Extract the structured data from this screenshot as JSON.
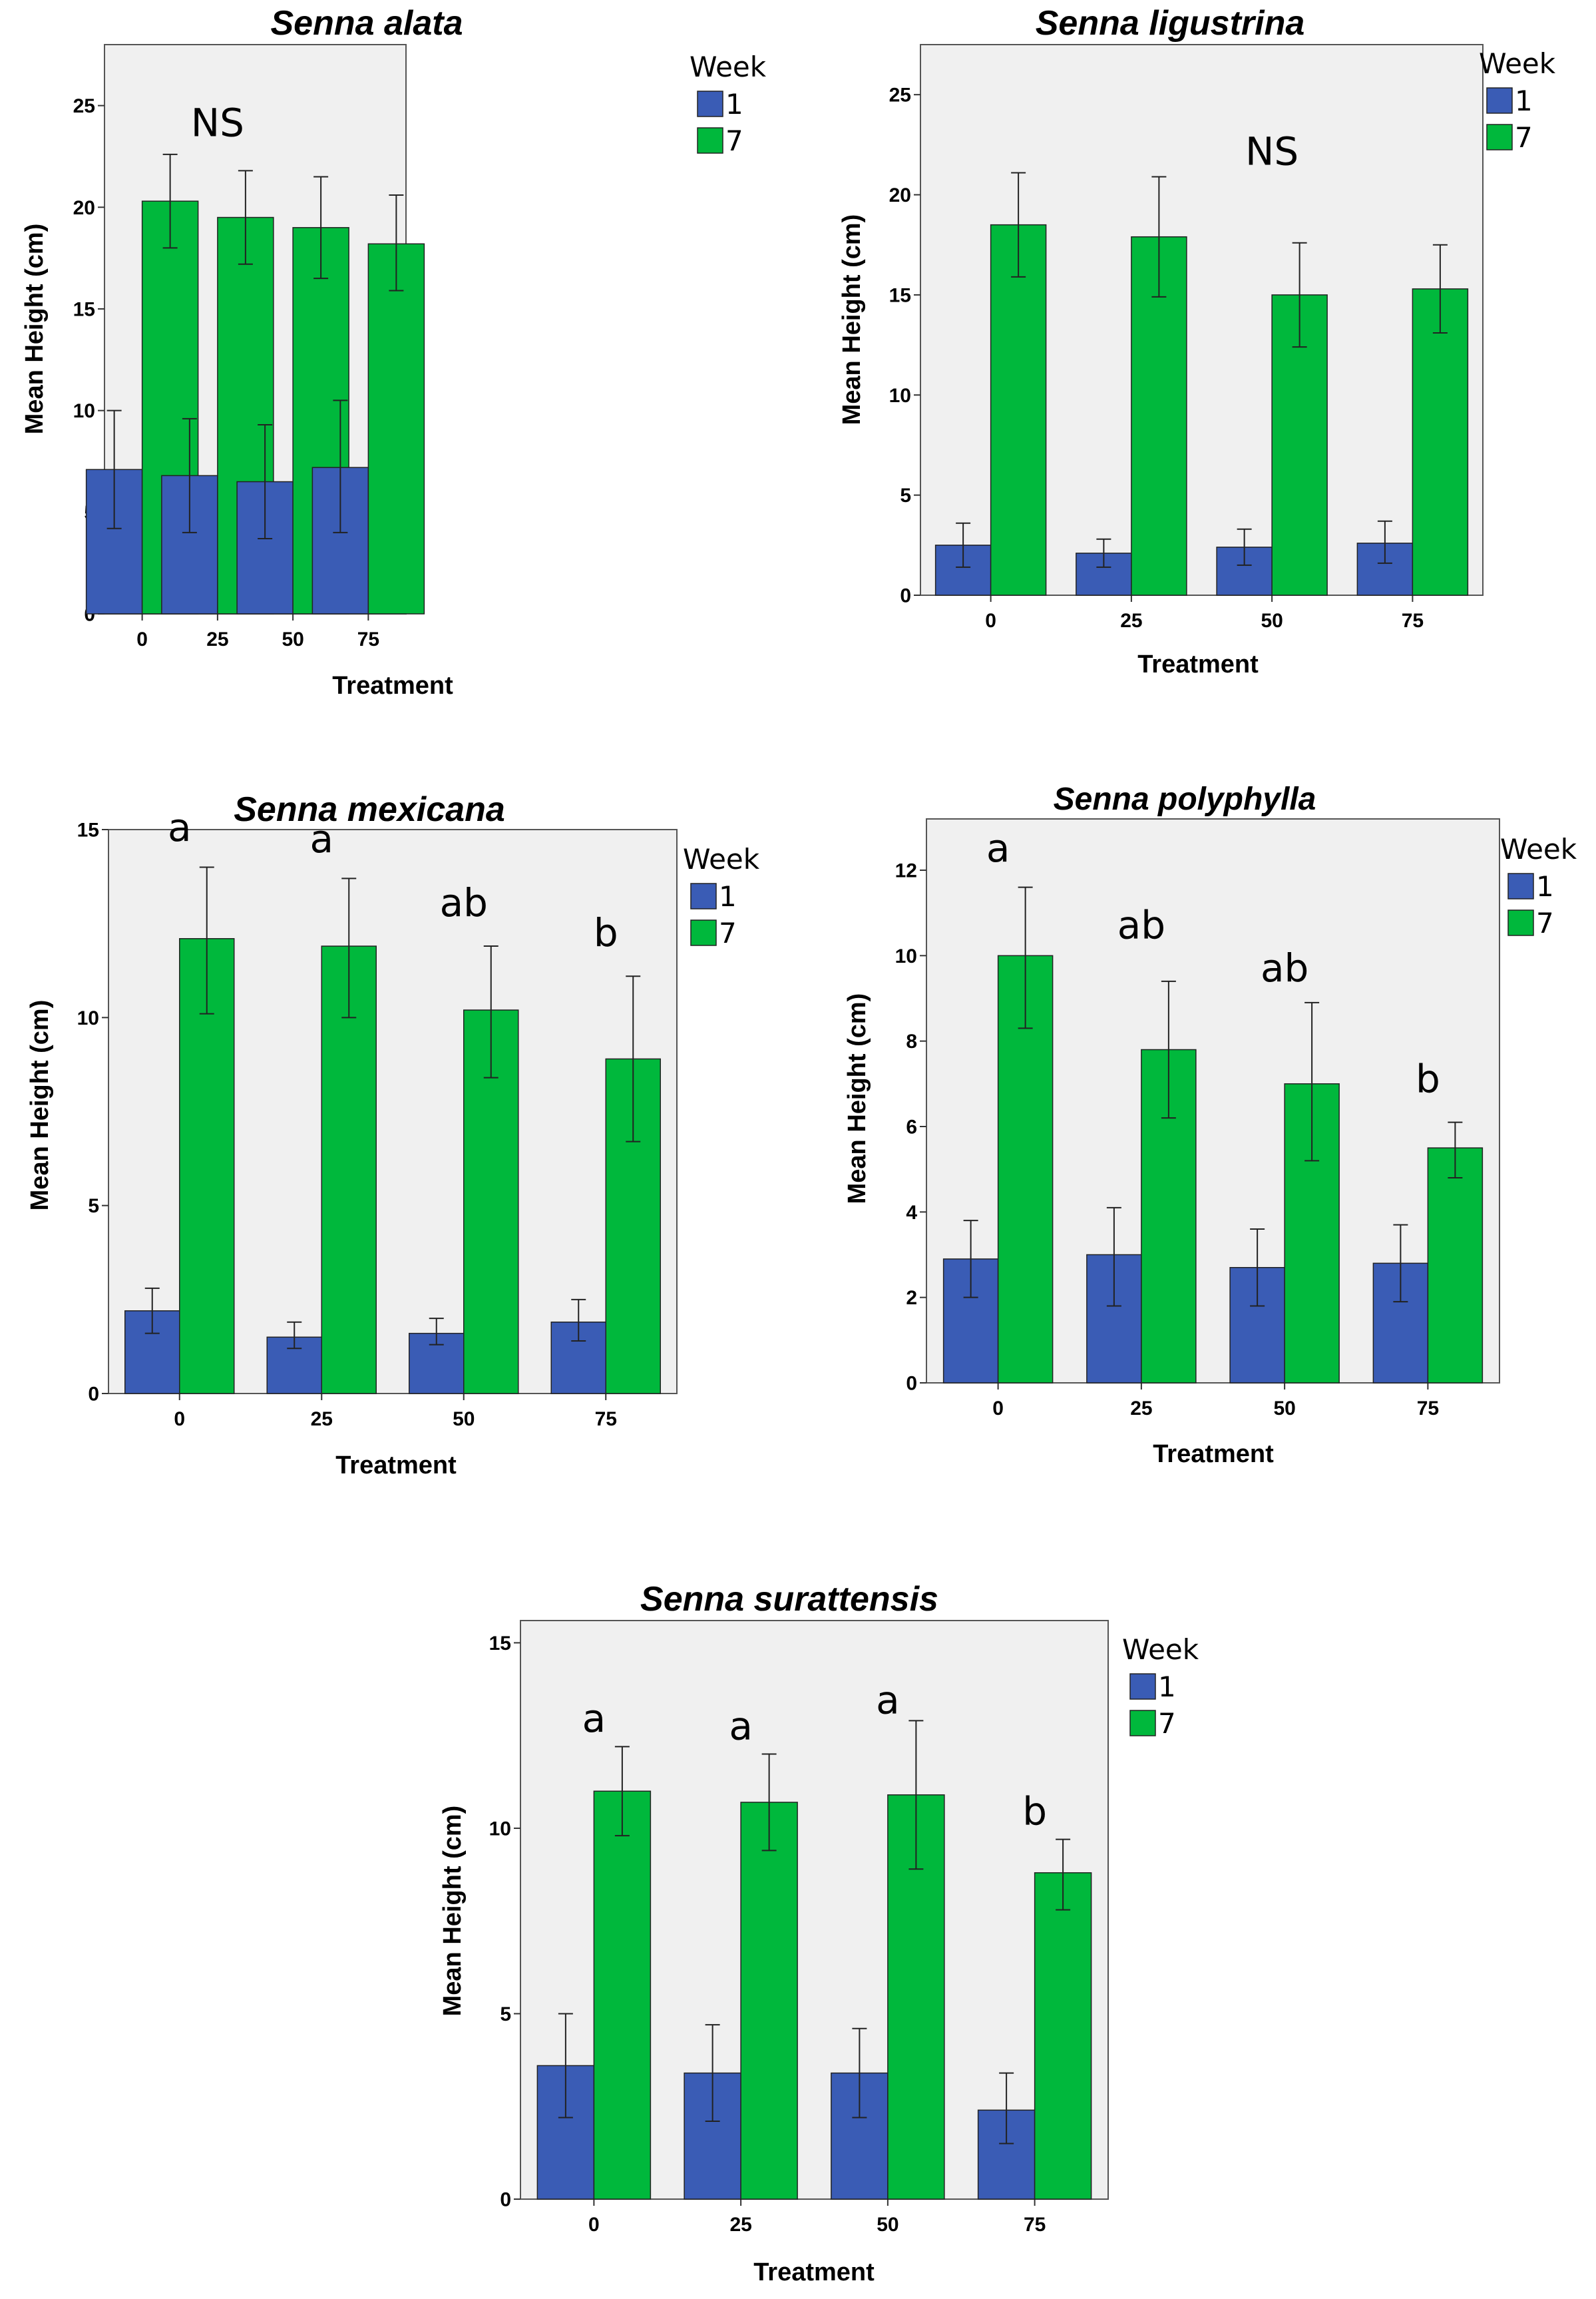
{
  "colors": {
    "week1": "#3a5cb5",
    "week7": "#00b83c",
    "plot_bg": "#f0f0f0",
    "frame": "#555555"
  },
  "chart_data": [
    {
      "type": "bar",
      "title": "Senna alata",
      "xlabel": "Treatment",
      "ylabel": "Mean Height (cm)",
      "ylim": [
        0,
        28
      ],
      "yticks": [
        0,
        5,
        10,
        15,
        20,
        25
      ],
      "categories": [
        "0",
        "25",
        "50",
        "75"
      ],
      "legend_title": "Week",
      "legend_position": "right",
      "series": [
        {
          "name": "1",
          "values": [
            7.1,
            6.8,
            6.5,
            7.2
          ],
          "err_low": [
            4.2,
            4.0,
            3.7,
            4.0
          ],
          "err_high": [
            10.0,
            9.6,
            9.3,
            10.5
          ]
        },
        {
          "name": "7",
          "values": [
            20.3,
            19.5,
            19.0,
            18.2
          ],
          "err_low": [
            18.0,
            17.2,
            16.5,
            15.9
          ],
          "err_high": [
            22.6,
            21.8,
            21.5,
            20.6
          ]
        }
      ],
      "annotations": [
        {
          "text": "NS",
          "category": "25",
          "y": 23.5
        }
      ]
    },
    {
      "type": "bar",
      "title": "Senna ligustrina",
      "xlabel": "Treatment",
      "ylabel": "Mean Height (cm)",
      "ylim": [
        0,
        27.5
      ],
      "yticks": [
        0,
        5,
        10,
        15,
        20,
        25
      ],
      "categories": [
        "0",
        "25",
        "50",
        "75"
      ],
      "legend_title": "Week",
      "legend_position": "right",
      "series": [
        {
          "name": "1",
          "values": [
            2.5,
            2.1,
            2.4,
            2.6
          ],
          "err_low": [
            1.4,
            1.4,
            1.5,
            1.6
          ],
          "err_high": [
            3.6,
            2.8,
            3.3,
            3.7
          ]
        },
        {
          "name": "7",
          "values": [
            18.5,
            17.9,
            15.0,
            15.3
          ],
          "err_low": [
            15.9,
            14.9,
            12.4,
            13.1
          ],
          "err_high": [
            21.1,
            20.9,
            17.6,
            17.5
          ]
        }
      ],
      "annotations": [
        {
          "text": "NS",
          "category": "50",
          "y": 21.5
        }
      ]
    },
    {
      "type": "bar",
      "title": "Senna mexicana",
      "xlabel": "Treatment",
      "ylabel": "Mean Height (cm)",
      "ylim": [
        0,
        15
      ],
      "yticks": [
        0,
        5,
        10,
        15
      ],
      "categories": [
        "0",
        "25",
        "50",
        "75"
      ],
      "legend_title": "Week",
      "legend_position": "right",
      "series": [
        {
          "name": "1",
          "values": [
            2.2,
            1.5,
            1.6,
            1.9
          ],
          "err_low": [
            1.6,
            1.2,
            1.3,
            1.4
          ],
          "err_high": [
            2.8,
            1.9,
            2.0,
            2.5
          ]
        },
        {
          "name": "7",
          "values": [
            12.1,
            11.9,
            10.2,
            8.9
          ],
          "err_low": [
            10.1,
            10.0,
            8.4,
            6.7
          ],
          "err_high": [
            14.0,
            13.7,
            11.9,
            11.1
          ]
        }
      ],
      "annotations": [
        {
          "text": "a",
          "category": "0",
          "y": 14.7
        },
        {
          "text": "a",
          "category": "25",
          "y": 14.4
        },
        {
          "text": "ab",
          "category": "50",
          "y": 12.7
        },
        {
          "text": "b",
          "category": "75",
          "y": 11.9
        }
      ]
    },
    {
      "type": "bar",
      "title": "Senna polyphylla",
      "xlabel": "Treatment",
      "ylabel": "Mean Height (cm)",
      "ylim": [
        0,
        13.2
      ],
      "yticks": [
        0,
        2,
        4,
        6,
        8,
        10,
        12
      ],
      "categories": [
        "0",
        "25",
        "50",
        "75"
      ],
      "legend_title": "Week",
      "legend_position": "right",
      "series": [
        {
          "name": "1",
          "values": [
            2.9,
            3.0,
            2.7,
            2.8
          ],
          "err_low": [
            2.0,
            1.8,
            1.8,
            1.9
          ],
          "err_high": [
            3.8,
            4.1,
            3.6,
            3.7
          ]
        },
        {
          "name": "7",
          "values": [
            10.0,
            7.8,
            7.0,
            5.5
          ],
          "err_low": [
            8.3,
            6.2,
            5.2,
            4.8
          ],
          "err_high": [
            11.6,
            9.4,
            8.9,
            6.1
          ]
        }
      ],
      "annotations": [
        {
          "text": "a",
          "category": "0",
          "y": 12.2
        },
        {
          "text": "ab",
          "category": "25",
          "y": 10.4
        },
        {
          "text": "ab",
          "category": "50",
          "y": 9.4
        },
        {
          "text": "b",
          "category": "75",
          "y": 6.8
        }
      ]
    },
    {
      "type": "bar",
      "title": "Senna surattensis",
      "xlabel": "Treatment",
      "ylabel": "Mean Height (cm)",
      "ylim": [
        0,
        15.6
      ],
      "yticks": [
        0,
        5,
        10,
        15
      ],
      "categories": [
        "0",
        "25",
        "50",
        "75"
      ],
      "legend_title": "Week",
      "legend_position": "right",
      "series": [
        {
          "name": "1",
          "values": [
            3.6,
            3.4,
            3.4,
            2.4
          ],
          "err_low": [
            2.2,
            2.1,
            2.2,
            1.5
          ],
          "err_high": [
            5.0,
            4.7,
            4.6,
            3.4
          ]
        },
        {
          "name": "7",
          "values": [
            11.0,
            10.7,
            10.9,
            8.8
          ],
          "err_low": [
            9.8,
            9.4,
            8.9,
            7.8
          ],
          "err_high": [
            12.2,
            12.0,
            12.9,
            9.7
          ]
        }
      ],
      "annotations": [
        {
          "text": "a",
          "category": "0",
          "y": 12.6
        },
        {
          "text": "a",
          "category": "25",
          "y": 12.4
        },
        {
          "text": "a",
          "category": "50",
          "y": 13.1
        },
        {
          "text": "b",
          "category": "75",
          "y": 10.1
        }
      ]
    }
  ]
}
